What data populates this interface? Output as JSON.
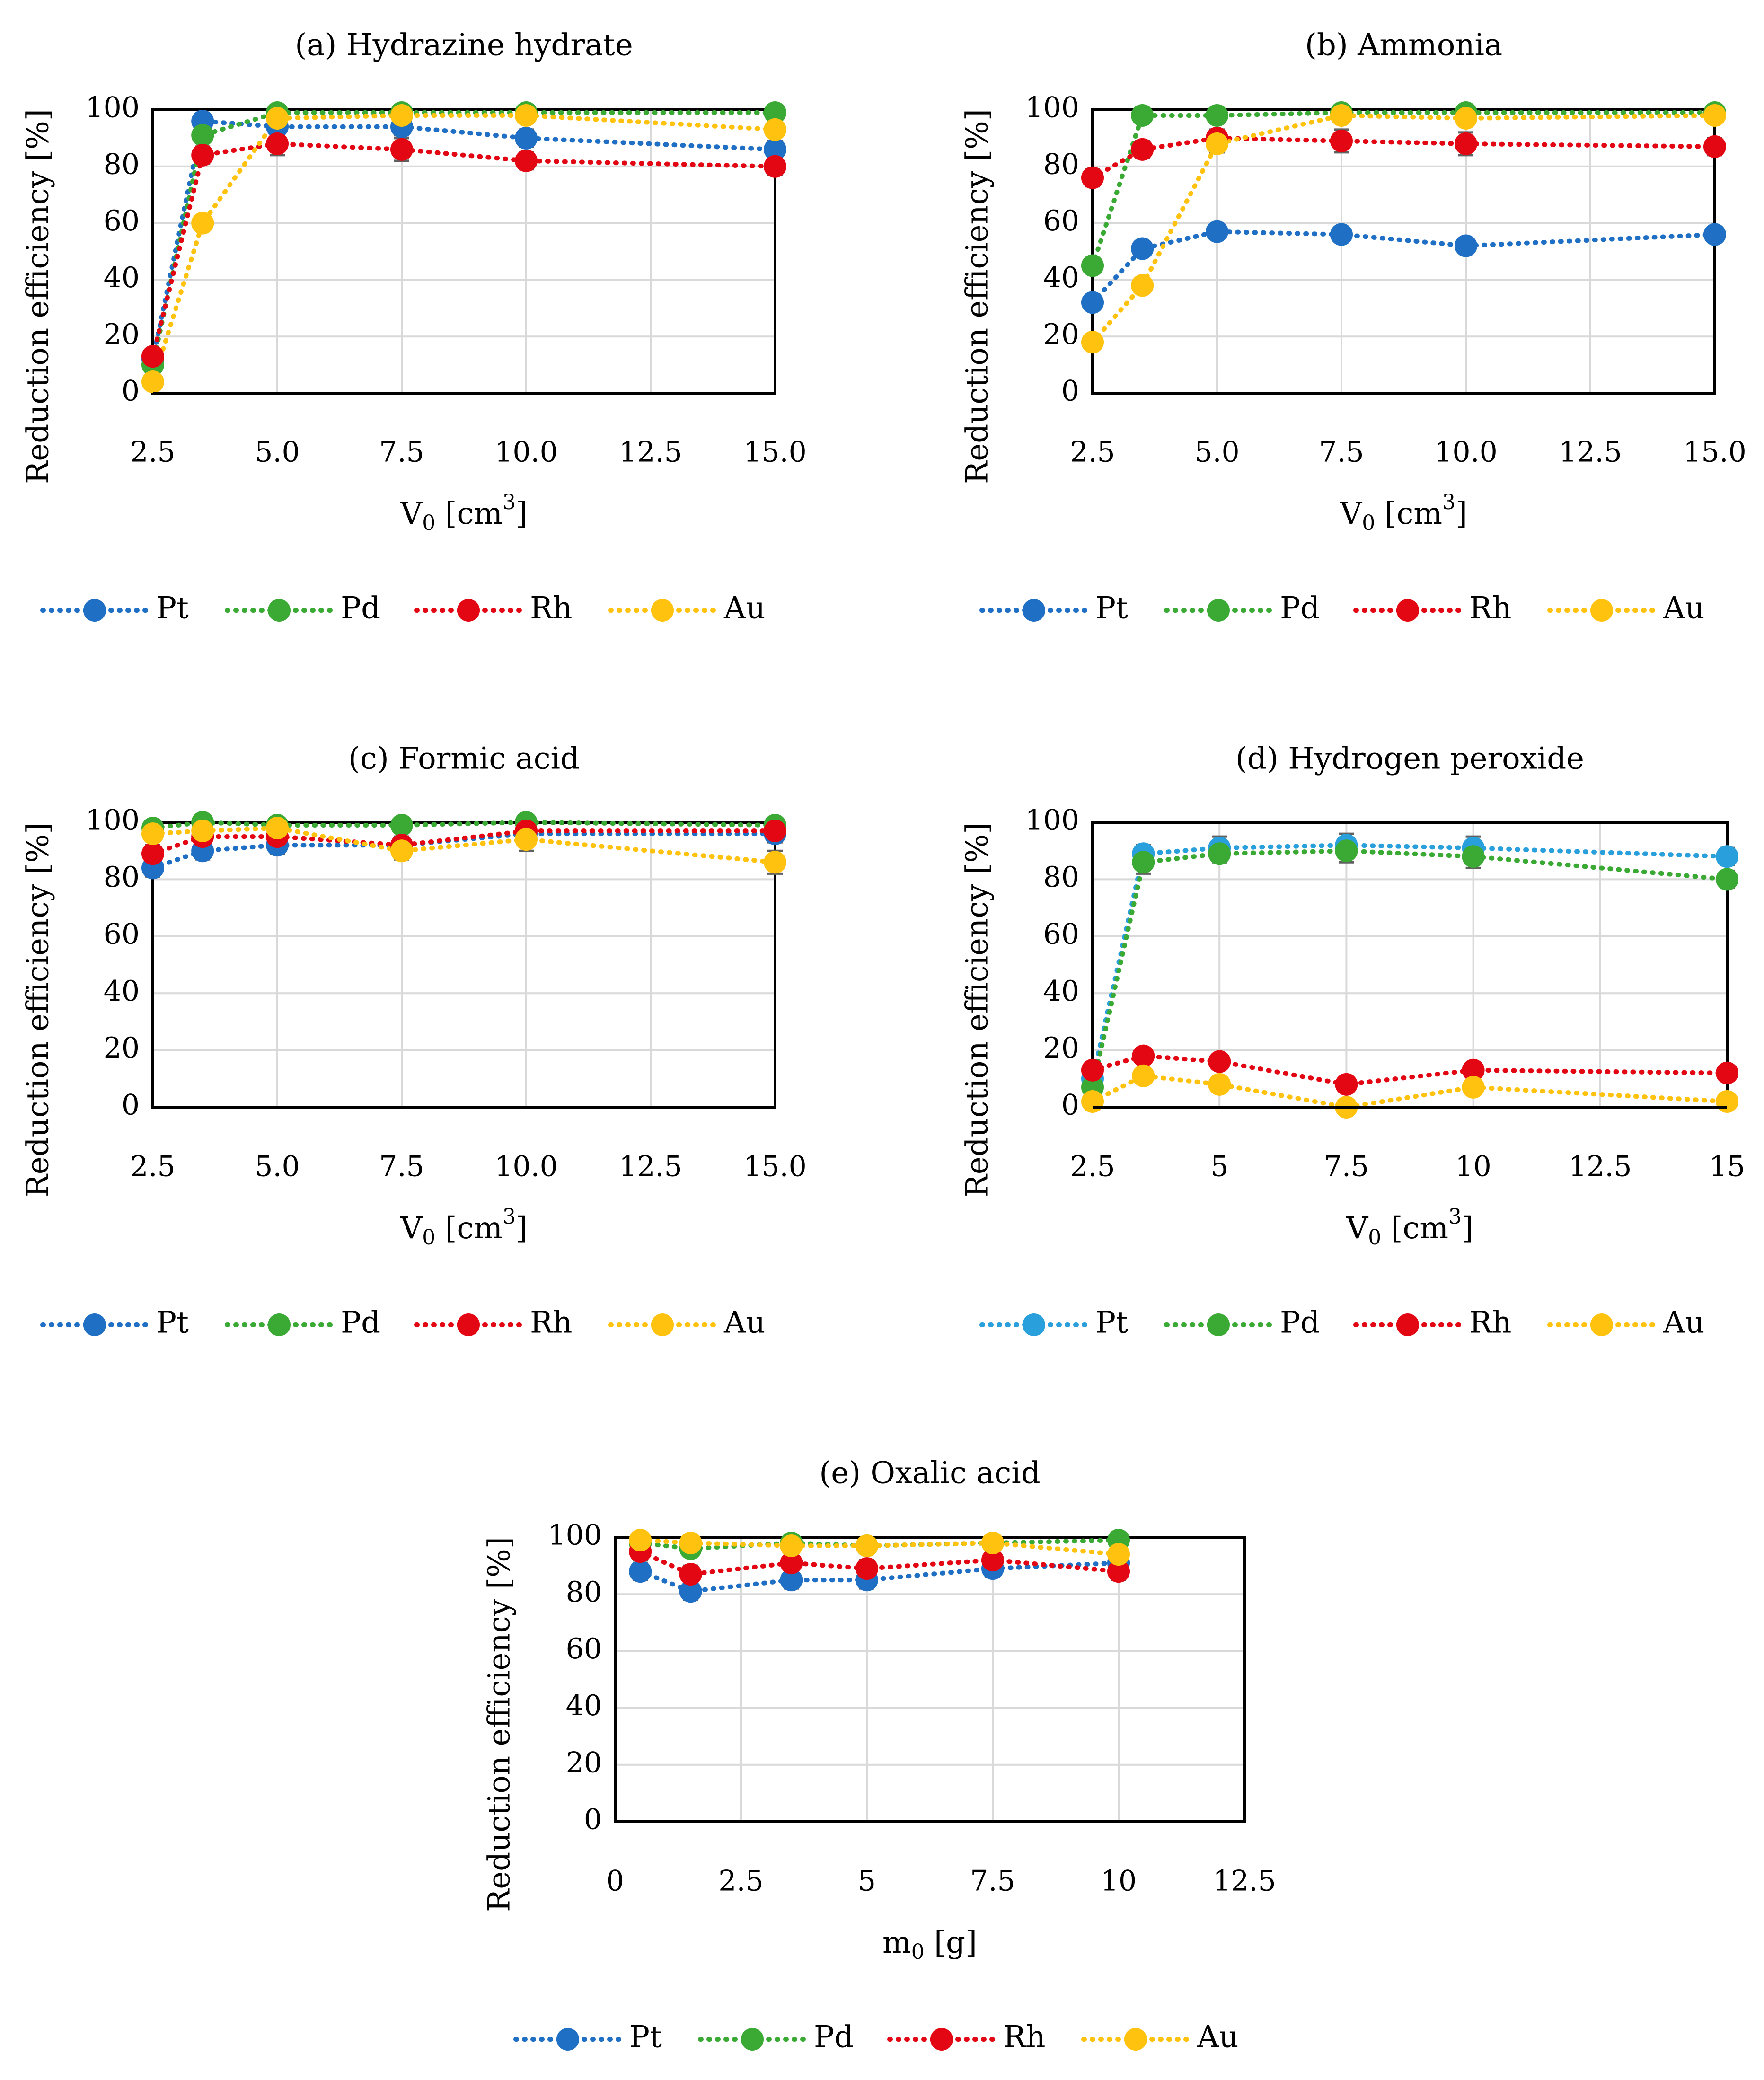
{
  "figure": {
    "marker_colors": {
      "Pt": "#1f6fc4",
      "Pt_alt": "#29a0dc",
      "Pd": "#3aaa35",
      "Rh": "#e30613",
      "Au": "#ffc20e"
    },
    "axis_color": "#000000",
    "grid_color": "#d9d9d9",
    "errorbar_color": "#606060"
  },
  "chart_data": [
    {
      "id": "a",
      "type": "line",
      "title": "(a) Hydrazine hydrate",
      "ylabel": "Reduction efficiency [%]",
      "xlabel_main": "V",
      "xlabel_sub": "0",
      "xlabel_unit": " [cm",
      "xlabel_sup": "3",
      "xlabel_end": "]",
      "xlim": [
        2.5,
        15.0
      ],
      "ylim": [
        0,
        100
      ],
      "xticks": [
        2.5,
        5.0,
        7.5,
        10.0,
        12.5,
        15.0
      ],
      "xtick_labels": [
        "2.5",
        "5.0",
        "7.5",
        "10.0",
        "12.5",
        "15.0"
      ],
      "yticks": [
        0,
        20,
        40,
        60,
        80,
        100
      ],
      "ytick_labels": [
        "0",
        "20",
        "40",
        "60",
        "80",
        "100"
      ],
      "x": [
        2.5,
        3.5,
        5.0,
        7.5,
        10.0,
        15.0
      ],
      "series": [
        {
          "name": "Pt",
          "color": "#1f6fc4",
          "values": [
            12,
            96,
            94,
            94,
            90,
            86
          ],
          "err": [
            2,
            2,
            3,
            3,
            3,
            3
          ]
        },
        {
          "name": "Pd",
          "color": "#3aaa35",
          "values": [
            10,
            91,
            99,
            99,
            99,
            99
          ],
          "err": [
            2,
            2,
            1,
            1,
            1,
            1
          ]
        },
        {
          "name": "Rh",
          "color": "#e30613",
          "values": [
            13,
            84,
            88,
            86,
            82,
            80
          ],
          "err": [
            2,
            3,
            4,
            4,
            3,
            3
          ]
        },
        {
          "name": "Au",
          "color": "#ffc20e",
          "values": [
            4,
            60,
            97,
            98,
            98,
            93
          ],
          "err": [
            1,
            2,
            2,
            2,
            2,
            2
          ]
        }
      ],
      "legend": [
        "Pt",
        "Pd",
        "Rh",
        "Au"
      ]
    },
    {
      "id": "b",
      "type": "line",
      "title": "(b) Ammonia",
      "ylabel": "Reduction efficiency [%]",
      "xlabel_main": "V",
      "xlabel_sub": "0",
      "xlabel_unit": " [cm",
      "xlabel_sup": "3",
      "xlabel_end": "]",
      "xlim": [
        2.5,
        15.0
      ],
      "ylim": [
        0,
        100
      ],
      "xticks": [
        2.5,
        5.0,
        7.5,
        10.0,
        12.5,
        15.0
      ],
      "xtick_labels": [
        "2.5",
        "5.0",
        "7.5",
        "10.0",
        "12.5",
        "15.0"
      ],
      "yticks": [
        0,
        20,
        40,
        60,
        80,
        100
      ],
      "ytick_labels": [
        "0",
        "20",
        "40",
        "60",
        "80",
        "100"
      ],
      "x": [
        2.5,
        3.5,
        5.0,
        7.5,
        10.0,
        15.0
      ],
      "series": [
        {
          "name": "Pt",
          "color": "#1f6fc4",
          "values": [
            32,
            51,
            57,
            56,
            52,
            56
          ],
          "err": [
            2,
            2,
            2,
            2,
            2,
            2
          ]
        },
        {
          "name": "Pd",
          "color": "#3aaa35",
          "values": [
            45,
            98,
            98,
            99,
            99,
            99
          ],
          "err": [
            2,
            1,
            1,
            1,
            1,
            1
          ]
        },
        {
          "name": "Rh",
          "color": "#e30613",
          "values": [
            76,
            86,
            90,
            89,
            88,
            87
          ],
          "err": [
            3,
            3,
            3,
            4,
            4,
            3
          ]
        },
        {
          "name": "Au",
          "color": "#ffc20e",
          "values": [
            18,
            38,
            88,
            98,
            97,
            98
          ],
          "err": [
            1,
            2,
            3,
            2,
            2,
            2
          ]
        }
      ],
      "legend": [
        "Pt",
        "Pd",
        "Rh",
        "Au"
      ]
    },
    {
      "id": "c",
      "type": "line",
      "title": "(c) Formic acid",
      "ylabel": "Reduction efficiency [%]",
      "xlabel_main": "V",
      "xlabel_sub": "0",
      "xlabel_unit": " [cm",
      "xlabel_sup": "3",
      "xlabel_end": "]",
      "xlim": [
        2.5,
        15.0
      ],
      "ylim": [
        0,
        100
      ],
      "xticks": [
        2.5,
        5.0,
        7.5,
        10.0,
        12.5,
        15.0
      ],
      "xtick_labels": [
        "2.5",
        "5.0",
        "7.5",
        "10.0",
        "12.5",
        "15.0"
      ],
      "yticks": [
        0,
        20,
        40,
        60,
        80,
        100
      ],
      "ytick_labels": [
        "0",
        "20",
        "40",
        "60",
        "80",
        "100"
      ],
      "x": [
        2.5,
        3.5,
        5.0,
        7.5,
        10.0,
        15.0
      ],
      "series": [
        {
          "name": "Pt",
          "color": "#1f6fc4",
          "values": [
            84,
            90,
            92,
            92,
            96,
            96
          ],
          "err": [
            3,
            3,
            3,
            3,
            3,
            3
          ]
        },
        {
          "name": "Pd",
          "color": "#3aaa35",
          "values": [
            98,
            100,
            99,
            99,
            100,
            99
          ],
          "err": [
            1,
            1,
            1,
            1,
            1,
            1
          ]
        },
        {
          "name": "Rh",
          "color": "#e30613",
          "values": [
            89,
            95,
            95,
            92,
            97,
            97
          ],
          "err": [
            3,
            3,
            3,
            3,
            3,
            3
          ]
        },
        {
          "name": "Au",
          "color": "#ffc20e",
          "values": [
            96,
            97,
            98,
            90,
            94,
            86
          ],
          "err": [
            2,
            2,
            2,
            3,
            4,
            4
          ]
        }
      ],
      "legend": [
        "Pt",
        "Pd",
        "Rh",
        "Au"
      ]
    },
    {
      "id": "d",
      "type": "line",
      "title": "(d) Hydrogen peroxide",
      "ylabel": "Reduction efficiency [%]",
      "xlabel_main": "V",
      "xlabel_sub": "0",
      "xlabel_unit": " [cm",
      "xlabel_sup": "3",
      "xlabel_end": "]",
      "xlim": [
        2.5,
        15.0
      ],
      "ylim": [
        0,
        100
      ],
      "xticks": [
        2.5,
        5,
        7.5,
        10,
        12.5,
        15
      ],
      "xtick_labels": [
        "2.5",
        "5",
        "7.5",
        "10",
        "12.5",
        "15"
      ],
      "yticks": [
        0,
        20,
        40,
        60,
        80,
        100
      ],
      "ytick_labels": [
        "0",
        "20",
        "40",
        "60",
        "80",
        "100"
      ],
      "x": [
        2.5,
        3.5,
        5.0,
        7.5,
        10.0,
        15.0
      ],
      "series": [
        {
          "name": "Pt",
          "color": "#29a0dc",
          "values": [
            10,
            89,
            91,
            92,
            91,
            88
          ],
          "err": [
            2,
            3,
            4,
            4,
            4,
            3
          ]
        },
        {
          "name": "Pd",
          "color": "#3aaa35",
          "values": [
            7,
            86,
            89,
            90,
            88,
            80
          ],
          "err": [
            2,
            4,
            3,
            4,
            4,
            3
          ]
        },
        {
          "name": "Rh",
          "color": "#e30613",
          "values": [
            13,
            18,
            16,
            8,
            13,
            12
          ],
          "err": [
            1,
            1,
            1,
            1,
            1,
            1
          ]
        },
        {
          "name": "Au",
          "color": "#ffc20e",
          "values": [
            2,
            11,
            8,
            0,
            7,
            2
          ],
          "err": [
            1,
            1,
            1,
            1,
            1,
            1
          ]
        }
      ],
      "legend": [
        "Pt",
        "Pd",
        "Rh",
        "Au"
      ]
    },
    {
      "id": "e",
      "type": "line",
      "title": "(e) Oxalic acid",
      "ylabel": "Reduction efficiency [%]",
      "xlabel_main": "m",
      "xlabel_sub": "0",
      "xlabel_unit": " [g]",
      "xlabel_sup": "",
      "xlabel_end": "",
      "xlim": [
        0,
        12.5
      ],
      "ylim": [
        0,
        100
      ],
      "xticks": [
        0,
        2.5,
        5,
        7.5,
        10,
        12.5
      ],
      "xtick_labels": [
        "0",
        "2.5",
        "5",
        "7.5",
        "10",
        "12.5"
      ],
      "yticks": [
        0,
        20,
        40,
        60,
        80,
        100
      ],
      "ytick_labels": [
        "0",
        "20",
        "40",
        "60",
        "80",
        "100"
      ],
      "x": [
        0.5,
        1.5,
        3.5,
        5.0,
        7.5,
        10.0
      ],
      "series": [
        {
          "name": "Pt",
          "color": "#1f6fc4",
          "values": [
            88,
            81,
            85,
            85,
            89,
            91
          ],
          "err": [
            3,
            3,
            3,
            3,
            3,
            3
          ]
        },
        {
          "name": "Pd",
          "color": "#3aaa35",
          "values": [
            98,
            96,
            98,
            97,
            98,
            99
          ],
          "err": [
            1,
            1,
            1,
            1,
            1,
            1
          ]
        },
        {
          "name": "Rh",
          "color": "#e30613",
          "values": [
            95,
            87,
            91,
            89,
            92,
            88
          ],
          "err": [
            3,
            3,
            3,
            3,
            3,
            3
          ]
        },
        {
          "name": "Au",
          "color": "#ffc20e",
          "values": [
            99,
            98,
            97,
            97,
            98,
            94
          ],
          "err": [
            2,
            2,
            2,
            2,
            2,
            2
          ]
        }
      ],
      "legend": [
        "Pt",
        "Pd",
        "Rh",
        "Au"
      ]
    }
  ]
}
